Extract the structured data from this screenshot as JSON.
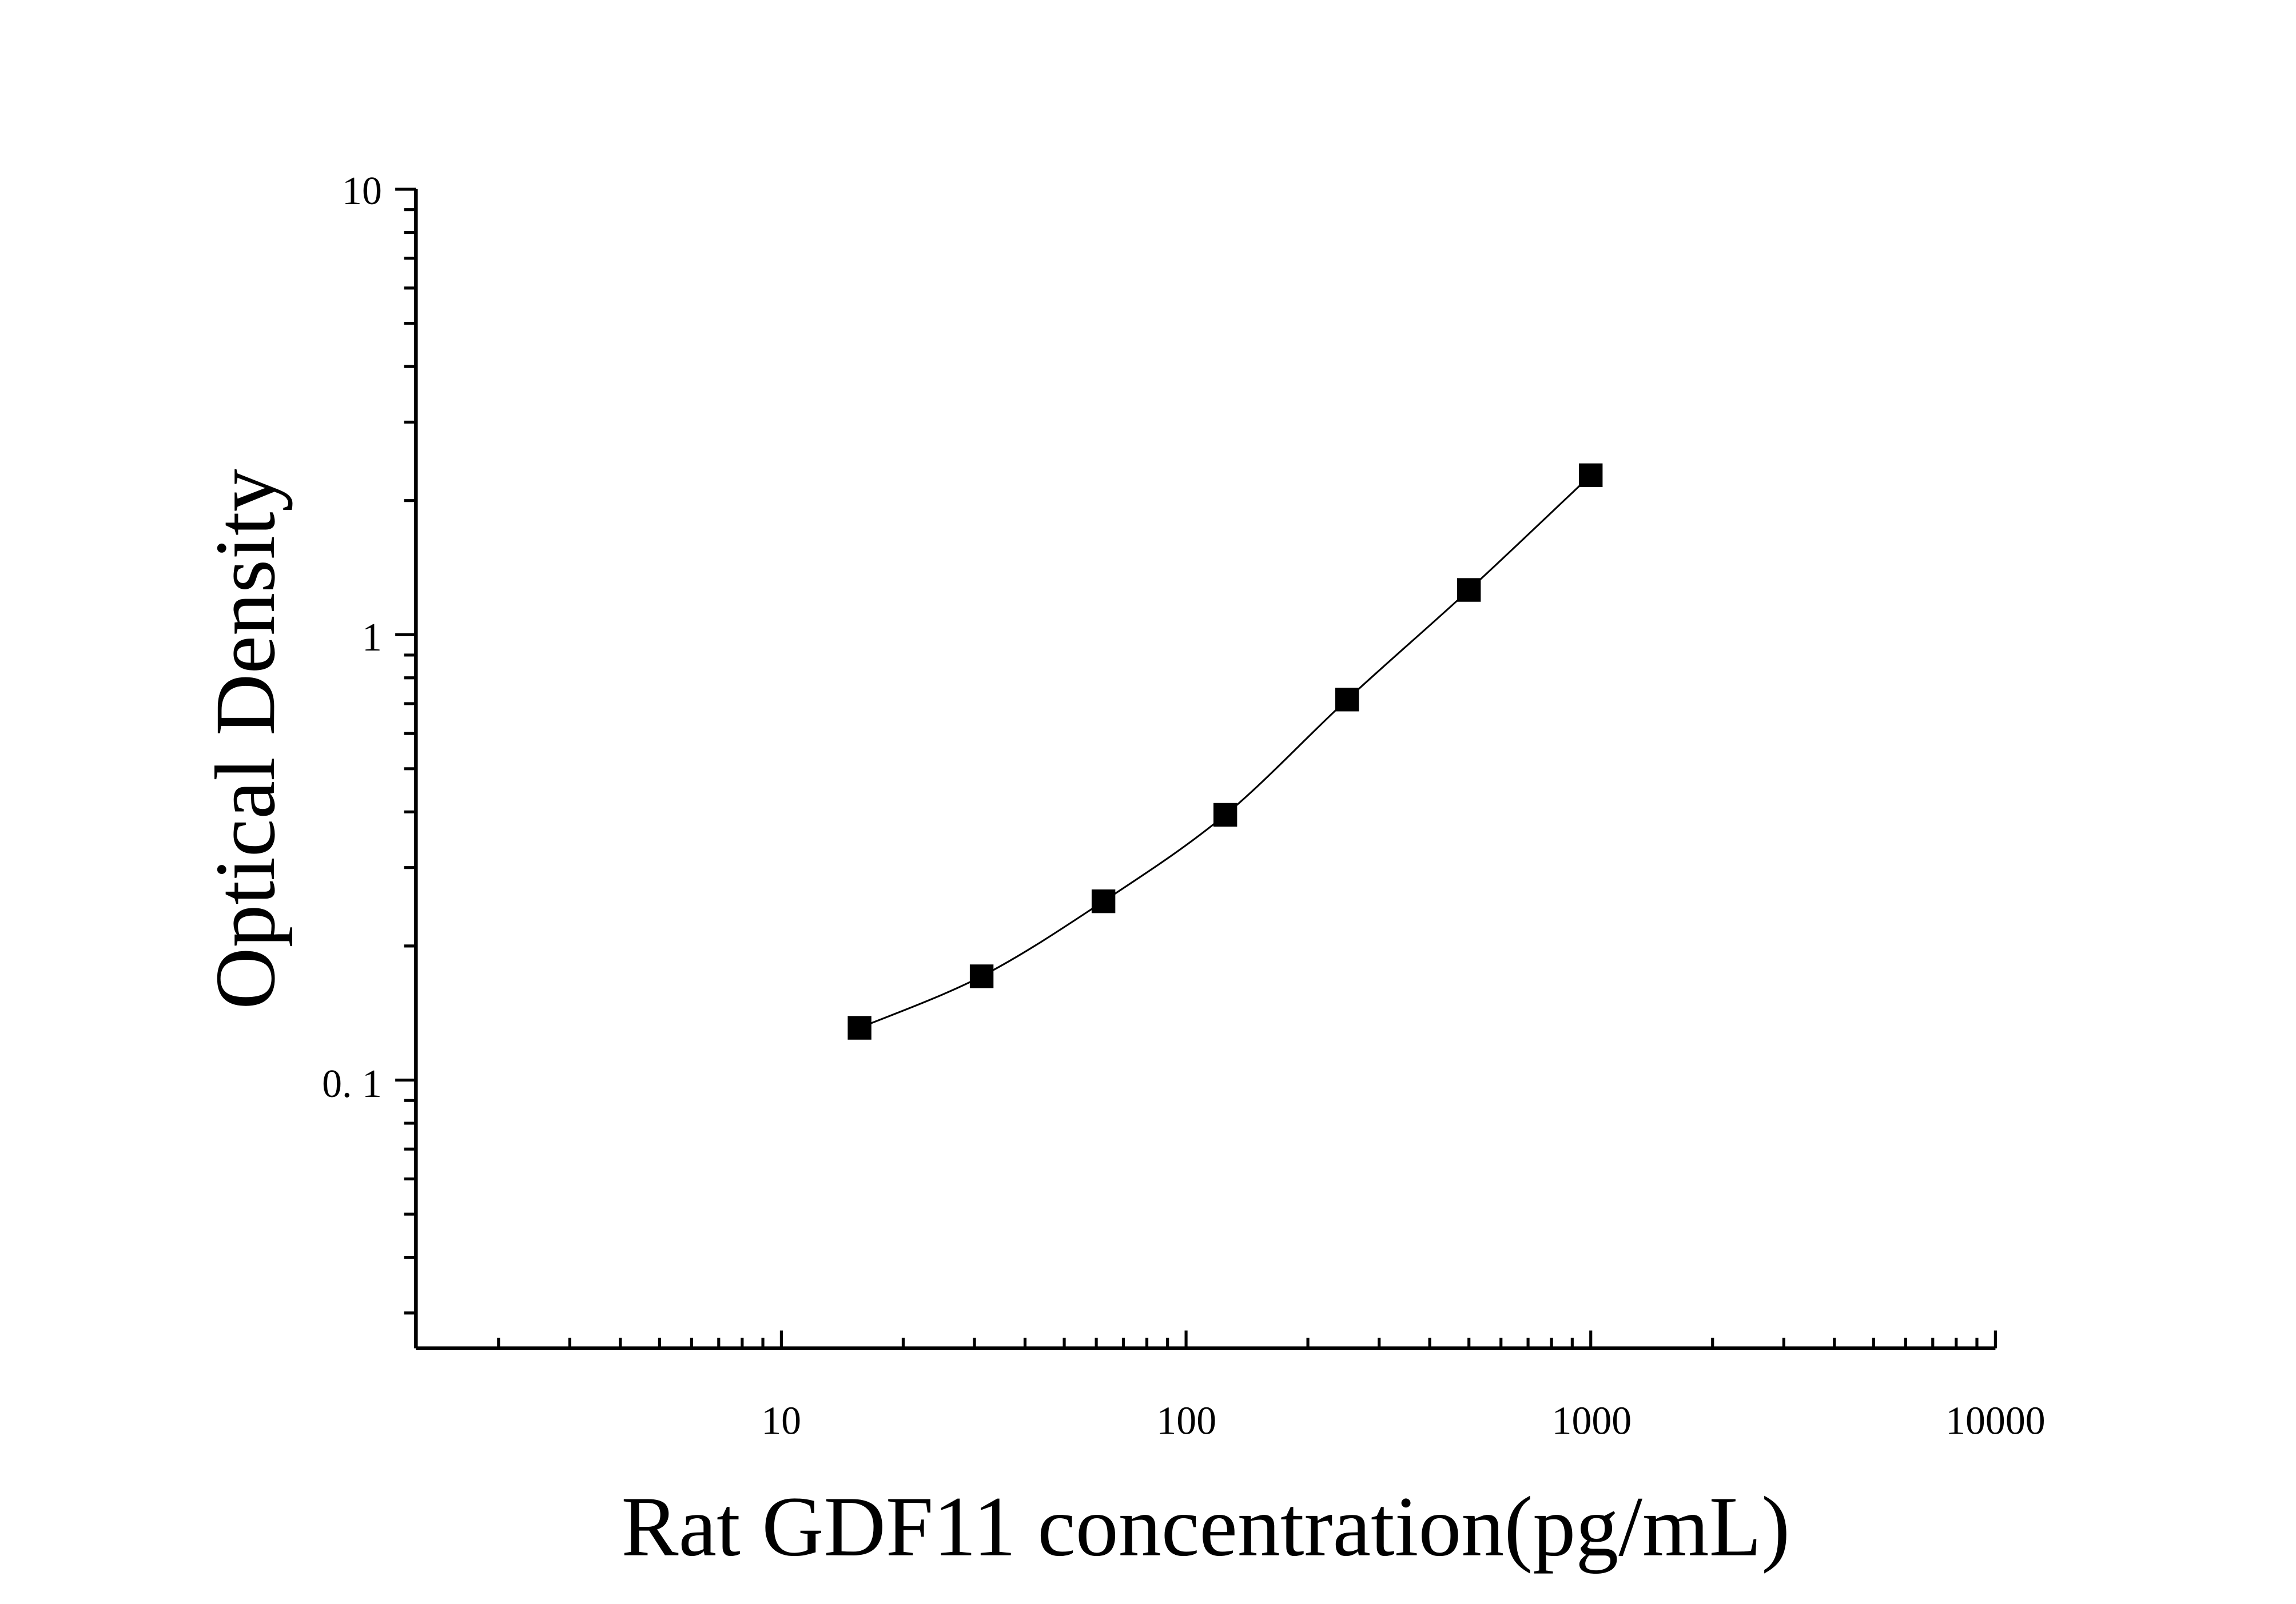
{
  "chart_data": {
    "type": "scatter",
    "title": "",
    "xlabel": "Rat GDF11 concentration(pg/mL)",
    "ylabel": "Optical Density",
    "x_scale": "log",
    "y_scale": "log",
    "xlim": [
      1.25,
      10000
    ],
    "ylim": [
      0.025,
      10
    ],
    "x_ticks": [
      10,
      100,
      1000,
      10000
    ],
    "x_tick_labels": [
      "10",
      "100",
      "1000",
      "10000"
    ],
    "y_ticks": [
      0.1,
      1,
      10
    ],
    "y_tick_labels": [
      "0. 1",
      "1",
      "10"
    ],
    "grid": false,
    "legend": "none",
    "marker": "square",
    "color": "#000000",
    "fit_curve": true,
    "series": [
      {
        "x": [
          15.6,
          31.25,
          62.5,
          125,
          250,
          500,
          1000
        ],
        "y": [
          0.131,
          0.171,
          0.252,
          0.394,
          0.715,
          1.26,
          2.28
        ]
      }
    ]
  }
}
